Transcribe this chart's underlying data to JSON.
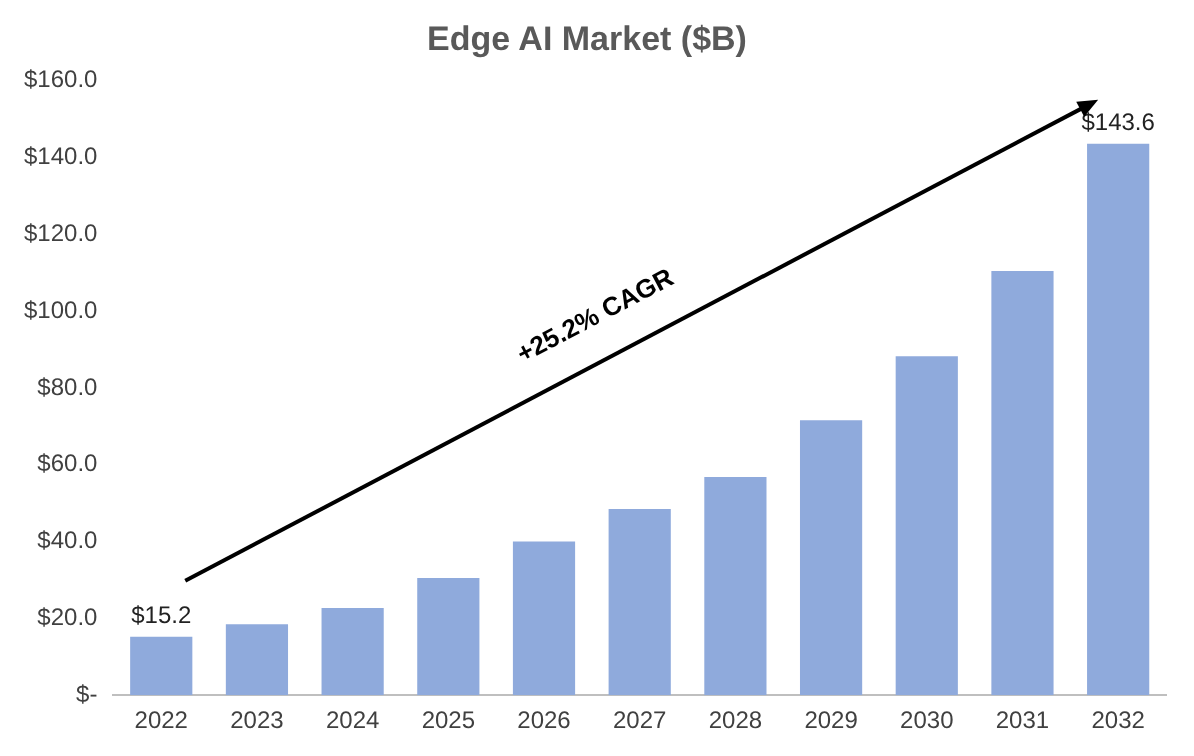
{
  "chart_data": {
    "type": "bar",
    "title": "Edge AI Market ($B)",
    "categories": [
      "2022",
      "2023",
      "2024",
      "2025",
      "2026",
      "2027",
      "2028",
      "2029",
      "2030",
      "2031",
      "2032"
    ],
    "values": [
      15.2,
      18.5,
      22.7,
      30.5,
      40,
      48.5,
      56.8,
      71.6,
      88.3,
      110.5,
      143.6
    ],
    "value_labels": [
      "$15.2",
      null,
      null,
      null,
      null,
      null,
      null,
      null,
      null,
      null,
      "$143.6"
    ],
    "color": "#8faadc",
    "ylim": [
      0,
      160
    ],
    "yticks": [
      {
        "value": 0,
        "label": "$-"
      },
      {
        "value": 20,
        "label": "$20.0"
      },
      {
        "value": 40,
        "label": "$40.0"
      },
      {
        "value": 60,
        "label": "$60.0"
      },
      {
        "value": 80,
        "label": "$80.0"
      },
      {
        "value": 100,
        "label": "$100.0"
      },
      {
        "value": 120,
        "label": "$120.0"
      },
      {
        "value": 140,
        "label": "$140.0"
      },
      {
        "value": 160,
        "label": "$160.0"
      }
    ],
    "annotations": [
      "+25.2% CAGR"
    ],
    "grid": false,
    "legend": false
  }
}
